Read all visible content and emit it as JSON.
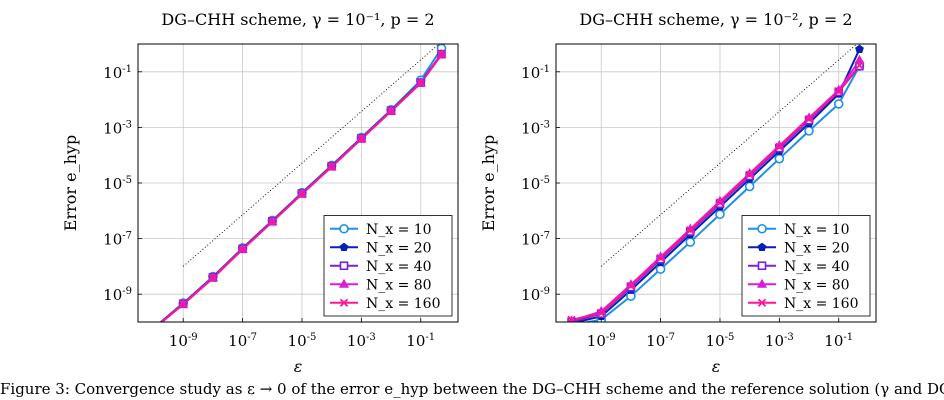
{
  "chart_data": [
    {
      "type": "line",
      "title": "DG–CHH scheme, γ = 10⁻¹, p = 2",
      "xlabel": "ε",
      "ylabel": "Error e_hyp",
      "x_scale": "log",
      "y_scale": "log",
      "xlim": [
        3e-11,
        1.8
      ],
      "ylim": [
        1e-10,
        1
      ],
      "x_ticks": [
        {
          "value": 1e-09,
          "label": "10⁻⁹"
        },
        {
          "value": 1e-07,
          "label": "10⁻⁷"
        },
        {
          "value": 1e-05,
          "label": "10⁻⁵"
        },
        {
          "value": 0.001,
          "label": "10⁻³"
        },
        {
          "value": 0.1,
          "label": "10⁻¹"
        }
      ],
      "y_ticks": [
        {
          "value": 1e-09,
          "label": "10⁻⁹"
        },
        {
          "value": 1e-07,
          "label": "10⁻⁷"
        },
        {
          "value": 1e-05,
          "label": "10⁻⁵"
        },
        {
          "value": 0.001,
          "label": "10⁻³"
        },
        {
          "value": 0.1,
          "label": "10⁻¹"
        }
      ],
      "grid": true,
      "legend": "bottom-right",
      "reference_line": {
        "style": "dotted",
        "color": "#000000",
        "points": [
          [
            1e-09,
            1e-08
          ],
          [
            0.5,
            1.2
          ]
        ]
      },
      "series": [
        {
          "name": "N_x = 10",
          "color": "#1e90e8",
          "marker": "circle",
          "x": [
            1e-10,
            1e-09,
            1e-08,
            1e-07,
            1e-06,
            1e-05,
            0.0001,
            0.001,
            0.01,
            0.1,
            0.5
          ],
          "y": [
            6e-11,
            4.8e-10,
            4.3e-09,
            4.6e-08,
            4.5e-07,
            4.5e-06,
            4.3e-05,
            0.00043,
            0.0043,
            0.05,
            0.7
          ]
        },
        {
          "name": "N_x = 20",
          "color": "#0a1fb5",
          "marker": "pentagon",
          "x": [
            1e-10,
            1e-09,
            1e-08,
            1e-07,
            1e-06,
            1e-05,
            0.0001,
            0.001,
            0.01,
            0.1,
            0.5
          ],
          "y": [
            5.9e-11,
            4.6e-10,
            4.1e-09,
            4.4e-08,
            4.3e-07,
            4.3e-06,
            4.1e-05,
            0.00041,
            0.0041,
            0.042,
            0.44
          ]
        },
        {
          "name": "N_x = 40",
          "color": "#7a22d8",
          "marker": "square",
          "x": [
            1e-10,
            1e-09,
            1e-08,
            1e-07,
            1e-06,
            1e-05,
            0.0001,
            0.001,
            0.01,
            0.1,
            0.5
          ],
          "y": [
            5.8e-11,
            4.5e-10,
            4e-09,
            4.3e-08,
            4.2e-07,
            4.2e-06,
            4e-05,
            0.0004,
            0.004,
            0.041,
            0.43
          ]
        },
        {
          "name": "N_x = 80",
          "color": "#d81ed8",
          "marker": "triangle",
          "x": [
            1e-10,
            1e-09,
            1e-08,
            1e-07,
            1e-06,
            1e-05,
            0.0001,
            0.001,
            0.01,
            0.1,
            0.5
          ],
          "y": [
            5.7e-11,
            4.4e-10,
            3.9e-09,
            4.2e-08,
            4.1e-07,
            4.1e-06,
            3.9e-05,
            0.00039,
            0.0039,
            0.04,
            0.42
          ]
        },
        {
          "name": "N_x = 160",
          "color": "#ff1493",
          "marker": "cross",
          "x": [
            1e-10,
            1e-09,
            1e-08,
            1e-07,
            1e-06,
            1e-05,
            0.0001,
            0.001,
            0.01,
            0.1,
            0.5
          ],
          "y": [
            5.6e-11,
            4.3e-10,
            3.8e-09,
            4.1e-08,
            4e-07,
            4e-06,
            3.8e-05,
            0.00038,
            0.0038,
            0.039,
            0.41
          ]
        }
      ]
    },
    {
      "type": "line",
      "title": "DG–CHH scheme, γ = 10⁻², p = 2",
      "xlabel": "ε",
      "ylabel": "Error e_hyp",
      "x_scale": "log",
      "y_scale": "log",
      "xlim": [
        3e-11,
        1.8
      ],
      "ylim": [
        1e-10,
        1
      ],
      "x_ticks": [
        {
          "value": 1e-09,
          "label": "10⁻⁹"
        },
        {
          "value": 1e-07,
          "label": "10⁻⁷"
        },
        {
          "value": 1e-05,
          "label": "10⁻⁵"
        },
        {
          "value": 0.001,
          "label": "10⁻³"
        },
        {
          "value": 0.1,
          "label": "10⁻¹"
        }
      ],
      "y_ticks": [
        {
          "value": 1e-09,
          "label": "10⁻⁹"
        },
        {
          "value": 1e-07,
          "label": "10⁻⁷"
        },
        {
          "value": 1e-05,
          "label": "10⁻⁵"
        },
        {
          "value": 0.001,
          "label": "10⁻³"
        },
        {
          "value": 0.1,
          "label": "10⁻¹"
        }
      ],
      "grid": true,
      "legend": "bottom-right",
      "reference_line": {
        "style": "dotted",
        "color": "#000000",
        "points": [
          [
            1e-09,
            1e-08
          ],
          [
            0.5,
            1.2
          ]
        ]
      },
      "series": [
        {
          "name": "N_x = 10",
          "color": "#1e90e8",
          "marker": "circle",
          "x": [
            1e-10,
            1e-09,
            1e-08,
            1e-07,
            1e-06,
            1e-05,
            0.0001,
            0.001,
            0.01,
            0.1,
            0.5
          ],
          "y": [
            8e-11,
            1.2e-10,
            8.5e-10,
            8e-09,
            7.5e-08,
            7.5e-07,
            7.5e-06,
            7.5e-05,
            0.00075,
            0.007,
            0.16
          ]
        },
        {
          "name": "N_x = 20",
          "color": "#0a1fb5",
          "marker": "pentagon",
          "x": [
            1e-10,
            1e-09,
            1e-08,
            1e-07,
            1e-06,
            1e-05,
            0.0001,
            0.001,
            0.01,
            0.1,
            0.5
          ],
          "y": [
            9e-11,
            1.6e-10,
            1.4e-09,
            1.4e-08,
            1.4e-07,
            1.4e-06,
            1.4e-05,
            0.00014,
            0.0014,
            0.016,
            0.65
          ]
        },
        {
          "name": "N_x = 40",
          "color": "#7a22d8",
          "marker": "square",
          "x": [
            1e-10,
            1e-09,
            1e-08,
            1e-07,
            1e-06,
            1e-05,
            0.0001,
            0.001,
            0.01,
            0.1,
            0.5
          ],
          "y": [
            1e-10,
            2e-10,
            1.8e-09,
            1.8e-08,
            1.8e-07,
            1.8e-06,
            1.8e-05,
            0.00018,
            0.0018,
            0.019,
            0.16
          ]
        },
        {
          "name": "N_x = 80",
          "color": "#d81ed8",
          "marker": "triangle",
          "x": [
            1e-10,
            1e-09,
            1e-08,
            1e-07,
            1e-06,
            1e-05,
            0.0001,
            0.001,
            0.01,
            0.1,
            0.5
          ],
          "y": [
            1.1e-10,
            2.4e-10,
            2.2e-09,
            2.2e-08,
            2.2e-07,
            2.2e-06,
            2.2e-05,
            0.00022,
            0.0022,
            0.022,
            0.26
          ]
        },
        {
          "name": "N_x = 160",
          "color": "#ff1493",
          "marker": "cross",
          "x": [
            1e-10,
            1e-09,
            1e-08,
            1e-07,
            1e-06,
            1e-05,
            0.0001,
            0.001,
            0.01,
            0.1,
            0.5
          ],
          "y": [
            1.2e-10,
            2.1e-10,
            2e-09,
            2e-08,
            2e-07,
            2e-06,
            2e-05,
            0.0002,
            0.002,
            0.02,
            0.17
          ]
        }
      ]
    }
  ],
  "caption": "Figure 3: Convergence study as ε → 0 of the error e_hyp between the DG–CHH scheme and the reference solution (γ and DG"
}
